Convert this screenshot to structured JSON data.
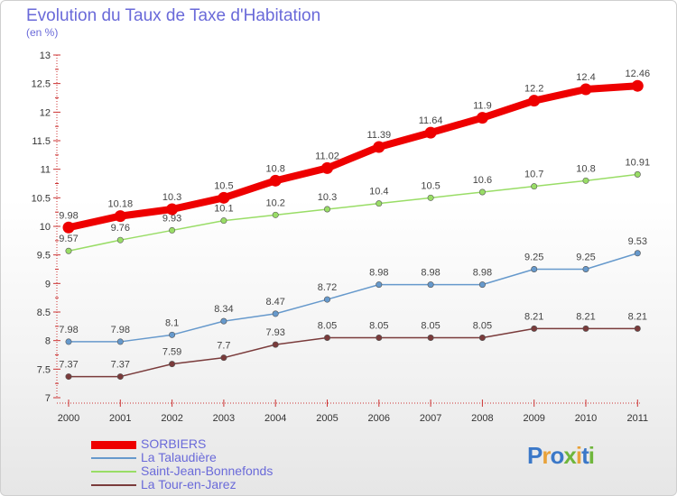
{
  "header": {
    "title": "Evolution du Taux de Taxe d'Habitation",
    "subtitle": "(en %)"
  },
  "brand": {
    "letters": [
      {
        "ch": "P",
        "color": "#3b78c8"
      },
      {
        "ch": "r",
        "color": "#e8a23a"
      },
      {
        "ch": "o",
        "color": "#3b78c8"
      },
      {
        "ch": "x",
        "color": "#6fb63c"
      },
      {
        "ch": "i",
        "color": "#e8a23a"
      },
      {
        "ch": "t",
        "color": "#3b78c8"
      },
      {
        "ch": "i",
        "color": "#6fb63c"
      }
    ]
  },
  "chart_data": {
    "type": "line",
    "title": "Evolution du Taux de Taxe d'Habitation",
    "subtitle": "(en %)",
    "xlabel": "",
    "ylabel": "",
    "x": [
      "2000",
      "2001",
      "2002",
      "2003",
      "2004",
      "2005",
      "2006",
      "2007",
      "2008",
      "2009",
      "2010",
      "2011"
    ],
    "ylim": [
      7,
      13
    ],
    "yticks": [
      "7",
      "7.5",
      "8",
      "8.5",
      "9",
      "9.5",
      "10",
      "10.5",
      "11",
      "11.5",
      "12",
      "12.5",
      "13"
    ],
    "grid": false,
    "legend_position": "bottom-left",
    "series": [
      {
        "name": "SORBIERS",
        "color": "#ee0000",
        "emphasis": true,
        "values": [
          9.98,
          10.18,
          10.3,
          10.5,
          10.8,
          11.02,
          11.39,
          11.64,
          11.9,
          12.2,
          12.4,
          12.46
        ],
        "labels": [
          "9.98",
          "10.18",
          "10.3",
          "10.5",
          "10.8",
          "11.02",
          "11.39",
          "11.64",
          "11.9",
          "12.2",
          "12.4",
          "12.46"
        ]
      },
      {
        "name": "La Talaudière",
        "color": "#6699cc",
        "emphasis": false,
        "values": [
          7.98,
          7.98,
          8.1,
          8.34,
          8.47,
          8.72,
          8.98,
          8.98,
          8.98,
          9.25,
          9.25,
          9.53
        ],
        "labels": [
          "7.98",
          "7.98",
          "8.1",
          "8.34",
          "8.47",
          "8.72",
          "8.98",
          "8.98",
          "8.98",
          "9.25",
          "9.25",
          "9.53"
        ]
      },
      {
        "name": "Saint-Jean-Bonnefonds",
        "color": "#99dd66",
        "emphasis": false,
        "values": [
          9.57,
          9.76,
          9.93,
          10.1,
          10.2,
          10.3,
          10.4,
          10.5,
          10.6,
          10.7,
          10.8,
          10.91
        ],
        "labels": [
          "9.57",
          "9.76",
          "9.93",
          "10.1",
          "10.2",
          "10.3",
          "10.4",
          "10.5",
          "10.6",
          "10.7",
          "10.8",
          "10.91"
        ]
      },
      {
        "name": "La Tour-en-Jarez",
        "color": "#7a3b3b",
        "emphasis": false,
        "values": [
          7.37,
          7.37,
          7.59,
          7.7,
          7.93,
          8.05,
          8.05,
          8.05,
          8.05,
          8.21,
          8.21,
          8.21
        ],
        "labels": [
          "7.37",
          "7.37",
          "7.59",
          "7.7",
          "7.93",
          "8.05",
          "8.05",
          "8.05",
          "8.05",
          "8.21",
          "8.21",
          "8.21"
        ]
      }
    ]
  }
}
